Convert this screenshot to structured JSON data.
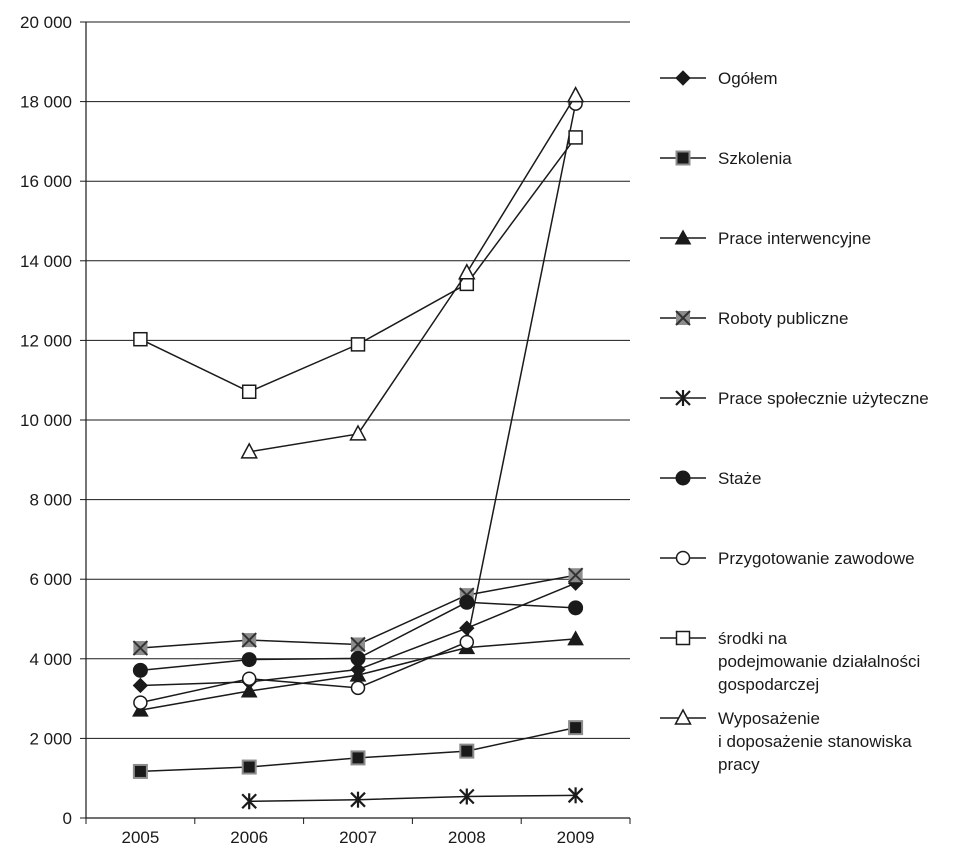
{
  "chart_data": {
    "type": "line",
    "title": "",
    "xlabel": "",
    "ylabel": "",
    "categories": [
      "2005",
      "2006",
      "2007",
      "2008",
      "2009"
    ],
    "ylim": [
      0,
      20000
    ],
    "y_ticks": [
      0,
      2000,
      4000,
      6000,
      8000,
      10000,
      12000,
      14000,
      16000,
      18000,
      20000
    ],
    "y_tick_labels": [
      "0",
      "2 000",
      "4 000",
      "6 000",
      "8 000",
      "10 000",
      "12 000",
      "14 000",
      "16 000",
      "18 000",
      "20 000"
    ],
    "grid": "horizontal",
    "legend_position": "right",
    "series": [
      {
        "name": "Ogółem",
        "marker": "diamond-filled",
        "values": [
          3330,
          3420,
          3730,
          4770,
          5900
        ],
        "legend_lines": [
          "Ogółem"
        ]
      },
      {
        "name": "Szkolenia",
        "marker": "square-gray",
        "values": [
          1170,
          1280,
          1510,
          1680,
          2270
        ],
        "legend_lines": [
          "Szkolenia"
        ]
      },
      {
        "name": "Prace interwencyjne",
        "marker": "triangle-filled",
        "values": [
          2710,
          3190,
          3590,
          4280,
          4500
        ],
        "legend_lines": [
          "Prace interwencyjne"
        ]
      },
      {
        "name": "Roboty publiczne",
        "marker": "square-x",
        "values": [
          4270,
          4470,
          4360,
          5600,
          6100
        ],
        "legend_lines": [
          "Roboty publiczne"
        ]
      },
      {
        "name": "Prace społecznie użyteczne",
        "marker": "asterisk",
        "values": [
          null,
          420,
          460,
          540,
          570
        ],
        "legend_lines": [
          "Prace społecznie użyteczne"
        ]
      },
      {
        "name": "Staże",
        "marker": "circle-filled",
        "values": [
          3710,
          3980,
          4010,
          5420,
          5280
        ],
        "legend_lines": [
          "Staże"
        ]
      },
      {
        "name": "Przygotowanie zawodowe",
        "marker": "circle-open",
        "values": [
          2900,
          3500,
          3270,
          4420,
          17950
        ],
        "legend_lines": [
          "Przygotowanie zawodowe"
        ]
      },
      {
        "name": "środki na podejmowanie działalności gospodarczej",
        "marker": "square-open",
        "values": [
          12030,
          10710,
          11900,
          13420,
          17100
        ],
        "legend_lines": [
          "środki na",
          "podejmowanie działalności",
          "gospodarczej"
        ]
      },
      {
        "name": "Wyposażenie i doposażenie stanowiska pracy",
        "marker": "triangle-open",
        "values": [
          null,
          9200,
          9650,
          13700,
          18150
        ],
        "legend_lines": [
          "Wyposażenie",
          "i doposażenie stanowiska",
          "pracy"
        ]
      }
    ]
  },
  "colors": {
    "line": "#1a1a1a",
    "marker_gray": "#8c8c8c",
    "grid": "#1a1a1a"
  }
}
